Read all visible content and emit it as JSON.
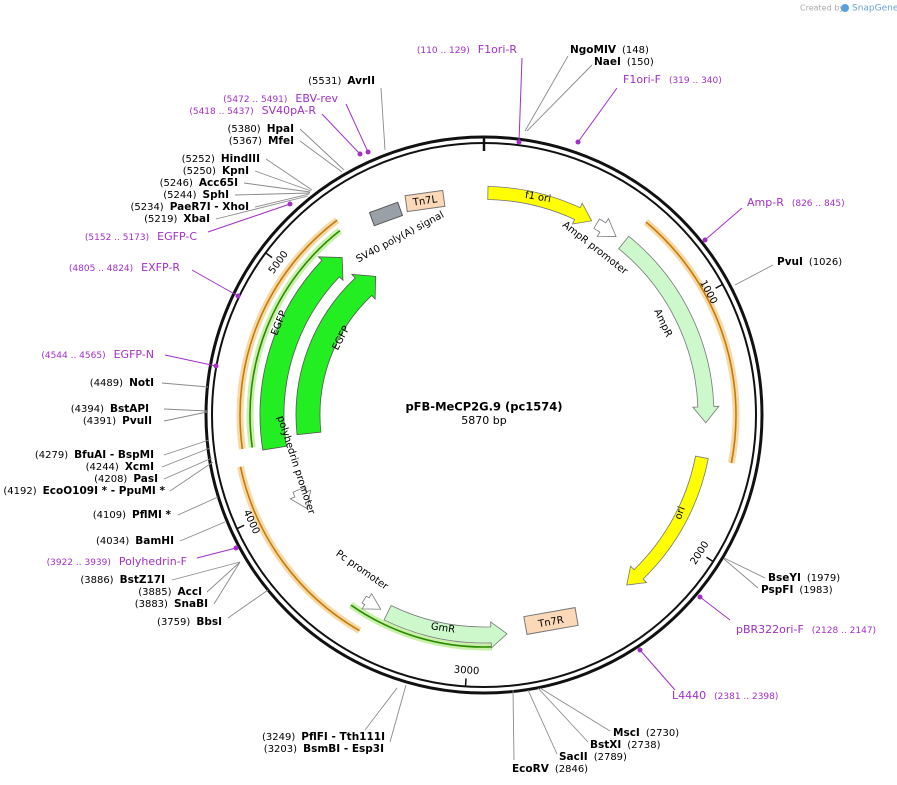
{
  "header": {
    "created_by": "Created by",
    "brand": "SnapGene"
  },
  "map": {
    "name": "pFB-MeCP2G.9 (pc1574)",
    "length": "5870 bp",
    "ticks": [
      1000,
      2000,
      3000,
      4000,
      5000
    ]
  },
  "enzymes": [
    {
      "name": "AvrII",
      "position": "(5531)"
    },
    {
      "name": "HpaI",
      "position": "(5380)"
    },
    {
      "name": "MfeI",
      "position": "(5367)"
    },
    {
      "name": "HindIII",
      "position": "(5252)"
    },
    {
      "name": "KpnI",
      "position": "(5250)"
    },
    {
      "name": "Acc65I",
      "position": "(5246)"
    },
    {
      "name": "SphI",
      "position": "(5244)"
    },
    {
      "name": "PaeR7I - XhoI",
      "position": "(5234)"
    },
    {
      "name": "XbaI",
      "position": "(5219)"
    },
    {
      "name": "NotI",
      "position": "(4489)"
    },
    {
      "name": "BstAPI",
      "position": "(4394)"
    },
    {
      "name": "PvuII",
      "position": "(4391)"
    },
    {
      "name": "BfuAI - BspMI",
      "position": "(4279)"
    },
    {
      "name": "XcmI",
      "position": "(4244)"
    },
    {
      "name": "PasI",
      "position": "(4208)"
    },
    {
      "name": "EcoO109I * - PpuMI *",
      "position": "(4192)"
    },
    {
      "name": "PflMI *",
      "position": "(4109)"
    },
    {
      "name": "BamHI",
      "position": "(4034)"
    },
    {
      "name": "BstZ17I",
      "position": "(3886)"
    },
    {
      "name": "AccI",
      "position": "(3885)"
    },
    {
      "name": "SnaBI",
      "position": "(3883)"
    },
    {
      "name": "BbsI",
      "position": "(3759)"
    },
    {
      "name": "PflFI - Tth111I",
      "position": "(3249)"
    },
    {
      "name": "BsmBI - Esp3I",
      "position": "(3203)"
    },
    {
      "name": "NgoMIV",
      "position": "(148)"
    },
    {
      "name": "NaeI",
      "position": "(150)"
    },
    {
      "name": "PvuI",
      "position": "(1026)"
    },
    {
      "name": "BseYI",
      "position": "(1979)"
    },
    {
      "name": "PspFI",
      "position": "(1983)"
    },
    {
      "name": "MscI",
      "position": "(2730)"
    },
    {
      "name": "BstXI",
      "position": "(2738)"
    },
    {
      "name": "SacII",
      "position": "(2789)"
    },
    {
      "name": "EcoRV",
      "position": "(2846)"
    }
  ],
  "primers": [
    {
      "name": "F1ori-R",
      "range": "(110 .. 129)"
    },
    {
      "name": "F1ori-F",
      "range": "(319 .. 340)"
    },
    {
      "name": "EBV-rev",
      "range": "(5472 .. 5491)"
    },
    {
      "name": "SV40pA-R",
      "range": "(5418 .. 5437)"
    },
    {
      "name": "EGFP-C",
      "range": "(5152 .. 5173)"
    },
    {
      "name": "EXFP-R",
      "range": "(4805 .. 4824)"
    },
    {
      "name": "EGFP-N",
      "range": "(4544 .. 4565)"
    },
    {
      "name": "Polyhedrin-F",
      "range": "(3922 .. 3939)"
    },
    {
      "name": "Amp-R",
      "range": "(826 .. 845)"
    },
    {
      "name": "pBR322ori-F",
      "range": "(2128 .. 2147)"
    },
    {
      "name": "L4440",
      "range": "(2381 .. 2398)"
    }
  ],
  "features": [
    "f1 ori",
    "AmpR promoter",
    "AmpR",
    "ori",
    "GmR",
    "Tn7R",
    "Pc promoter",
    "polyhedrin promoter",
    "EGFP",
    "EGFP",
    "SV40 poly(A) signal",
    "Tn7L"
  ]
}
